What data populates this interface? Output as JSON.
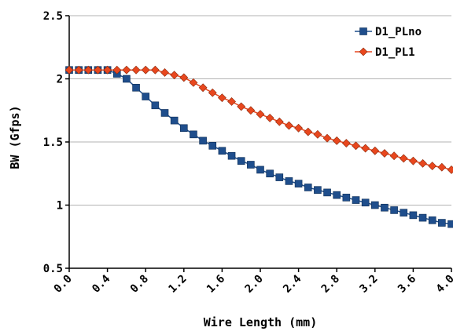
{
  "chart_data": {
    "type": "line",
    "title": "",
    "xlabel": "Wire Length (mm)",
    "ylabel": "BW (Gfps)",
    "xlim": [
      0.0,
      4.0
    ],
    "ylim": [
      0.5,
      2.5
    ],
    "x_ticks": [
      "0.0",
      "0.4",
      "0.8",
      "1.2",
      "1.6",
      "2.0",
      "2.4",
      "2.8",
      "3.2",
      "3.6",
      "4.0"
    ],
    "y_ticks": [
      "0.5",
      "1",
      "1.5",
      "2",
      "2.5"
    ],
    "grid": "horizontal",
    "legend_position": "top-right",
    "x": [
      0.0,
      0.1,
      0.2,
      0.3,
      0.4,
      0.5,
      0.6,
      0.7,
      0.8,
      0.9,
      1.0,
      1.1,
      1.2,
      1.3,
      1.4,
      1.5,
      1.6,
      1.7,
      1.8,
      1.9,
      2.0,
      2.1,
      2.2,
      2.3,
      2.4,
      2.5,
      2.6,
      2.7,
      2.8,
      2.9,
      3.0,
      3.1,
      3.2,
      3.3,
      3.4,
      3.5,
      3.6,
      3.7,
      3.8,
      3.9,
      4.0
    ],
    "series": [
      {
        "name": "D1_PLno",
        "color": "#1F4E8C",
        "marker": "square",
        "values": [
          2.07,
          2.07,
          2.07,
          2.07,
          2.07,
          2.04,
          2.0,
          1.93,
          1.86,
          1.79,
          1.73,
          1.67,
          1.61,
          1.56,
          1.51,
          1.47,
          1.43,
          1.39,
          1.35,
          1.32,
          1.28,
          1.25,
          1.22,
          1.19,
          1.17,
          1.14,
          1.12,
          1.1,
          1.08,
          1.06,
          1.04,
          1.02,
          1.0,
          0.98,
          0.96,
          0.94,
          0.92,
          0.9,
          0.88,
          0.86,
          0.85
        ]
      },
      {
        "name": "D1_PL1",
        "color": "#E8471E",
        "marker": "diamond",
        "values": [
          2.07,
          2.07,
          2.07,
          2.07,
          2.07,
          2.07,
          2.07,
          2.07,
          2.07,
          2.07,
          2.05,
          2.03,
          2.01,
          1.97,
          1.93,
          1.89,
          1.85,
          1.82,
          1.78,
          1.75,
          1.72,
          1.69,
          1.66,
          1.63,
          1.61,
          1.58,
          1.56,
          1.53,
          1.51,
          1.49,
          1.47,
          1.45,
          1.43,
          1.41,
          1.39,
          1.37,
          1.35,
          1.33,
          1.31,
          1.3,
          1.28
        ]
      }
    ]
  }
}
